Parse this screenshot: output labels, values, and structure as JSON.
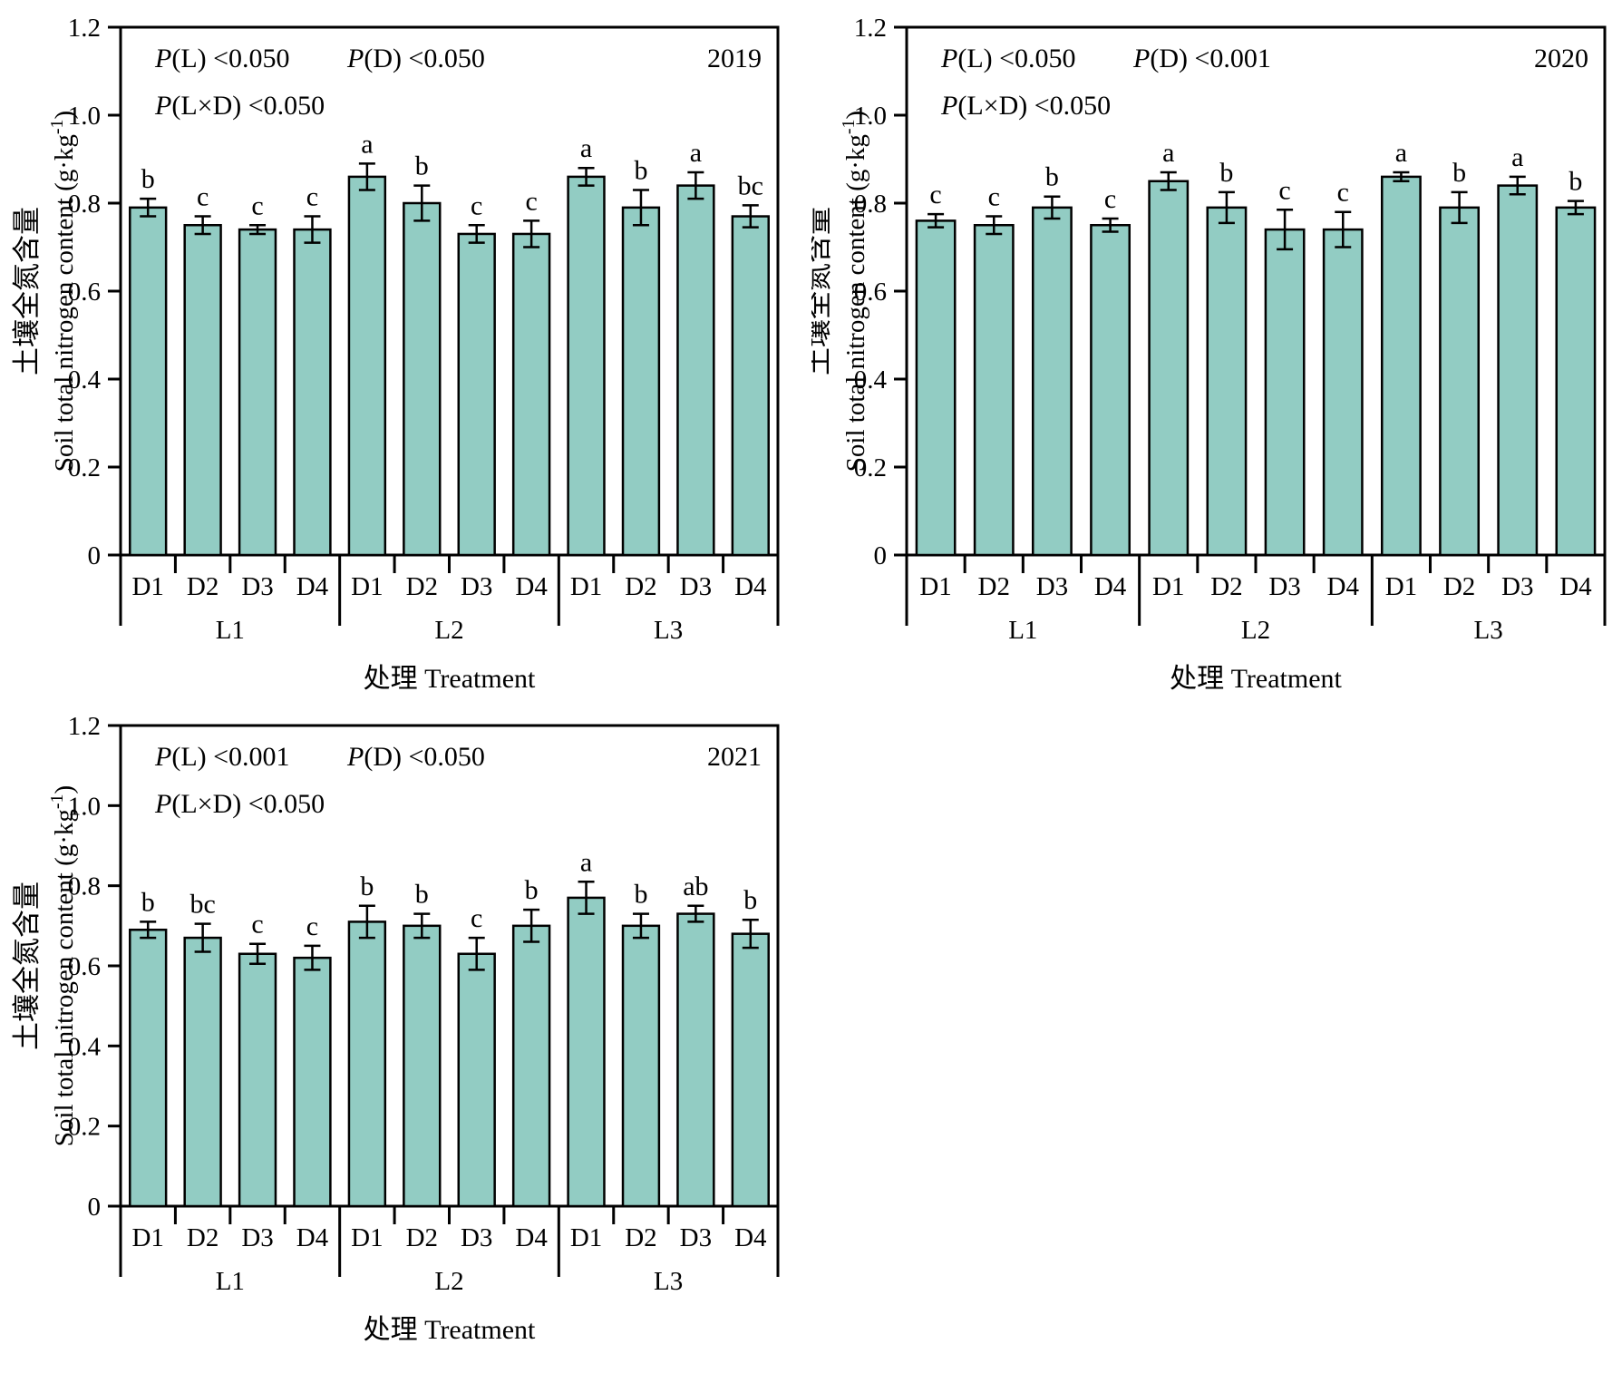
{
  "figure": {
    "background": "#ffffff"
  },
  "colors": {
    "bar_fill": "#92ccc3",
    "stroke": "#000000"
  },
  "chart_data": [
    {
      "type": "bar",
      "year": "2019",
      "stats": [
        {
          "label": "P",
          "factor": "(L)",
          "value": "<0.050"
        },
        {
          "label": "P",
          "factor": "(D)",
          "value": "<0.050"
        },
        {
          "label": "P",
          "factor": "(L×D)",
          "value": "<0.050"
        }
      ],
      "ylabel_cn": "土壤全氮含量",
      "ylabel_en_prefix": "Soil total nitrogen content (g·kg",
      "ylabel_en_sup": "-1",
      "ylabel_en_suffix": ")",
      "xlabel": "处理 Treatment",
      "ylim": [
        0,
        1.2
      ],
      "yticks": [
        "0",
        "0.2",
        "0.4",
        "0.6",
        "0.8",
        "1.0",
        "1.2"
      ],
      "grid": "off",
      "legend": "none",
      "groups": [
        "L1",
        "L2",
        "L3"
      ],
      "categories": [
        "D1",
        "D2",
        "D3",
        "D4"
      ],
      "series": [
        {
          "group": "L1",
          "values": [
            0.79,
            0.75,
            0.74,
            0.74
          ],
          "errors": [
            0.02,
            0.02,
            0.01,
            0.03
          ],
          "letters": [
            "b",
            "c",
            "c",
            "c"
          ]
        },
        {
          "group": "L2",
          "values": [
            0.86,
            0.8,
            0.73,
            0.73
          ],
          "errors": [
            0.03,
            0.04,
            0.02,
            0.03
          ],
          "letters": [
            "a",
            "b",
            "c",
            "c"
          ]
        },
        {
          "group": "L3",
          "values": [
            0.86,
            0.79,
            0.84,
            0.77
          ],
          "errors": [
            0.02,
            0.04,
            0.03,
            0.025
          ],
          "letters": [
            "a",
            "b",
            "a",
            "bc"
          ]
        }
      ]
    },
    {
      "type": "bar",
      "year": "2020",
      "stats": [
        {
          "label": "P",
          "factor": "(L)",
          "value": "<0.050"
        },
        {
          "label": "P",
          "factor": "(D)",
          "value": "<0.001"
        },
        {
          "label": "P",
          "factor": "(L×D)",
          "value": "<0.050"
        }
      ],
      "ylabel_cn": "土壤全氮含量",
      "ylabel_en_prefix": "Soil total nitrogen content (g·kg",
      "ylabel_en_sup": "-1",
      "ylabel_en_suffix": ")",
      "xlabel": "处理 Treatment",
      "ylim": [
        0,
        1.2
      ],
      "yticks": [
        "0",
        "0.2",
        "0.4",
        "0.6",
        "0.8",
        "1.0",
        "1.2"
      ],
      "grid": "off",
      "legend": "none",
      "groups": [
        "L1",
        "L2",
        "L3"
      ],
      "categories": [
        "D1",
        "D2",
        "D3",
        "D4"
      ],
      "series": [
        {
          "group": "L1",
          "values": [
            0.76,
            0.75,
            0.79,
            0.75
          ],
          "errors": [
            0.015,
            0.02,
            0.025,
            0.015
          ],
          "letters": [
            "c",
            "c",
            "b",
            "c"
          ]
        },
        {
          "group": "L2",
          "values": [
            0.85,
            0.79,
            0.74,
            0.74
          ],
          "errors": [
            0.02,
            0.035,
            0.045,
            0.04
          ],
          "letters": [
            "a",
            "b",
            "c",
            "c"
          ]
        },
        {
          "group": "L3",
          "values": [
            0.86,
            0.79,
            0.84,
            0.79
          ],
          "errors": [
            0.01,
            0.035,
            0.02,
            0.015
          ],
          "letters": [
            "a",
            "b",
            "a",
            "b"
          ]
        }
      ]
    },
    {
      "type": "bar",
      "year": "2021",
      "stats": [
        {
          "label": "P",
          "factor": "(L)",
          "value": "<0.001"
        },
        {
          "label": "P",
          "factor": "(D)",
          "value": "<0.050"
        },
        {
          "label": "P",
          "factor": "(L×D)",
          "value": "<0.050"
        }
      ],
      "ylabel_cn": "土壤全氮含量",
      "ylabel_en_prefix": "Soil total nitrogen content (g·kg",
      "ylabel_en_sup": "-1",
      "ylabel_en_suffix": ")",
      "xlabel": "处理 Treatment",
      "ylim": [
        0,
        1.2
      ],
      "yticks": [
        "0",
        "0.2",
        "0.4",
        "0.6",
        "0.8",
        "1.0",
        "1.2"
      ],
      "grid": "off",
      "legend": "none",
      "groups": [
        "L1",
        "L2",
        "L3"
      ],
      "categories": [
        "D1",
        "D2",
        "D3",
        "D4"
      ],
      "series": [
        {
          "group": "L1",
          "values": [
            0.69,
            0.67,
            0.63,
            0.62
          ],
          "errors": [
            0.02,
            0.035,
            0.025,
            0.03
          ],
          "letters": [
            "b",
            "bc",
            "c",
            "c"
          ]
        },
        {
          "group": "L2",
          "values": [
            0.71,
            0.7,
            0.63,
            0.7
          ],
          "errors": [
            0.04,
            0.03,
            0.04,
            0.04
          ],
          "letters": [
            "b",
            "b",
            "c",
            "b"
          ]
        },
        {
          "group": "L3",
          "values": [
            0.77,
            0.7,
            0.73,
            0.68
          ],
          "errors": [
            0.04,
            0.03,
            0.02,
            0.035
          ],
          "letters": [
            "a",
            "b",
            "ab",
            "b"
          ]
        }
      ]
    }
  ]
}
